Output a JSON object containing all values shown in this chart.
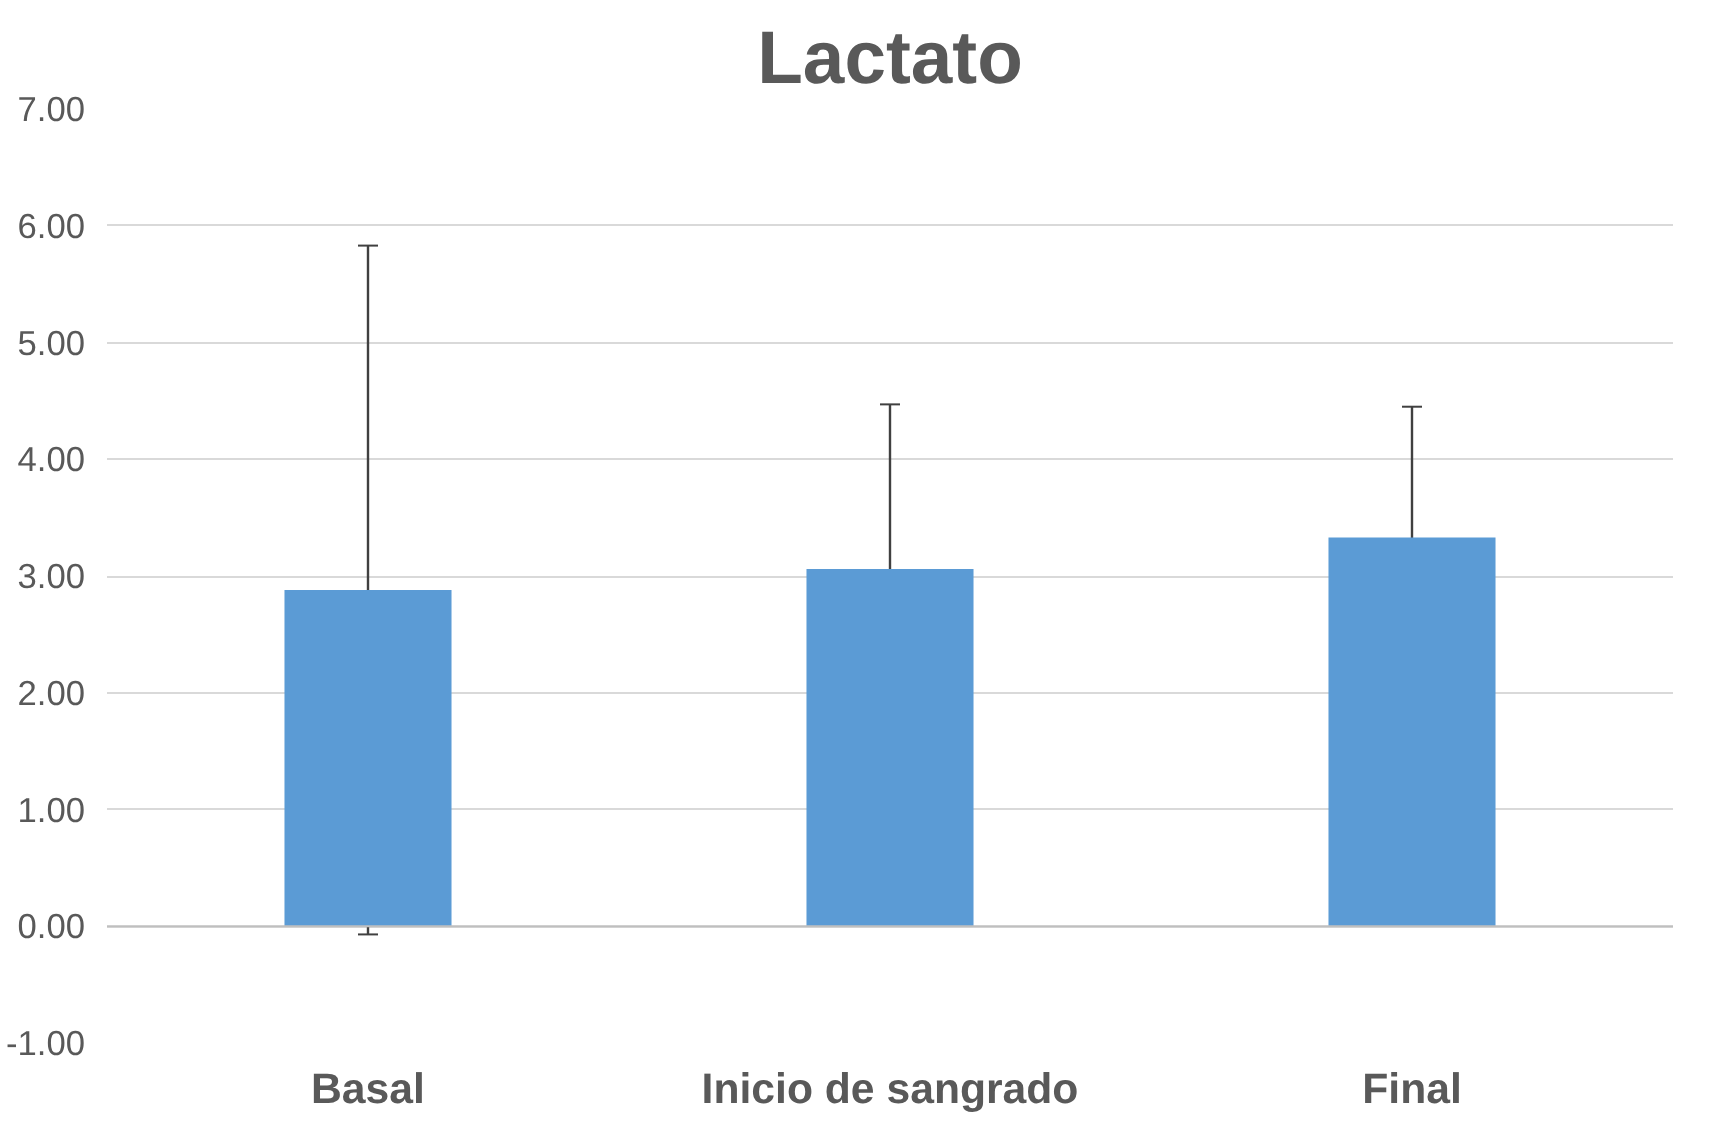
{
  "chart_data": {
    "type": "bar",
    "title": "Lactato",
    "categories": [
      "Basal",
      "Inicio de sangrado",
      "Final"
    ],
    "values": [
      2.88,
      3.06,
      3.33
    ],
    "errors": [
      2.95,
      1.41,
      1.12
    ],
    "color": "#5b9bd5",
    "ylim": [
      -1,
      7
    ],
    "yticks": [
      {
        "value": -1,
        "label": "-1.00"
      },
      {
        "value": 0,
        "label": "0.00"
      },
      {
        "value": 1,
        "label": "1.00"
      },
      {
        "value": 2,
        "label": "2.00"
      },
      {
        "value": 3,
        "label": "3.00"
      },
      {
        "value": 4,
        "label": "4.00"
      },
      {
        "value": 5,
        "label": "5.00"
      },
      {
        "value": 6,
        "label": "6.00"
      },
      {
        "value": 7,
        "label": "7.00"
      }
    ],
    "grid": "y"
  }
}
